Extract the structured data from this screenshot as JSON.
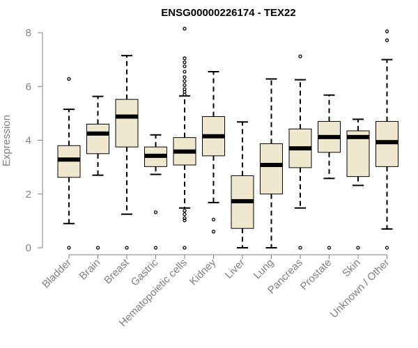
{
  "chart_data": {
    "type": "box",
    "title": "ENSG00000226174 - TEX22",
    "xlabel": "",
    "ylabel": "Expression",
    "ylim": [
      0,
      8
    ],
    "yticks": [
      0,
      2,
      4,
      6,
      8
    ],
    "grid": false,
    "box_fill": "#efe8cf",
    "categories": [
      "Bladder",
      "Brain",
      "Breast",
      "Gastric",
      "Hematopoietic cells",
      "Kidney",
      "Liver",
      "Lung",
      "Pancreas",
      "Prostate",
      "Skin",
      "Unknown / Other"
    ],
    "boxes": [
      {
        "q1": 2.62,
        "median": 3.28,
        "q3": 3.8,
        "whisker_low": 0.9,
        "whisker_high": 5.15,
        "outliers": [
          0,
          6.28
        ]
      },
      {
        "q1": 3.5,
        "median": 4.25,
        "q3": 4.6,
        "whisker_low": 2.7,
        "whisker_high": 5.63,
        "outliers": [
          0
        ]
      },
      {
        "q1": 3.75,
        "median": 4.88,
        "q3": 5.52,
        "whisker_low": 1.25,
        "whisker_high": 7.15,
        "outliers": [
          0
        ]
      },
      {
        "q1": 3.02,
        "median": 3.42,
        "q3": 3.75,
        "whisker_low": 2.73,
        "whisker_high": 4.2,
        "outliers": [
          0,
          1.32
        ]
      },
      {
        "q1": 3.08,
        "median": 3.58,
        "q3": 4.1,
        "whisker_low": 1.48,
        "whisker_high": 5.65,
        "outliers": [
          0,
          1.02,
          1.1,
          1.25,
          1.38,
          5.7,
          5.8,
          5.9,
          6.05,
          6.2,
          6.35,
          6.55,
          6.75,
          6.9,
          7.05,
          8.15
        ]
      },
      {
        "q1": 3.42,
        "median": 4.15,
        "q3": 4.88,
        "whisker_low": 1.68,
        "whisker_high": 6.55,
        "outliers": [
          0.6,
          1.05
        ]
      },
      {
        "q1": 0.72,
        "median": 1.73,
        "q3": 2.68,
        "whisker_low": 0,
        "whisker_high": 4.68,
        "outliers": []
      },
      {
        "q1": 2.0,
        "median": 3.08,
        "q3": 3.87,
        "whisker_low": 0,
        "whisker_high": 6.28,
        "outliers": []
      },
      {
        "q1": 2.98,
        "median": 3.7,
        "q3": 4.42,
        "whisker_low": 1.48,
        "whisker_high": 6.25,
        "outliers": [
          0,
          7.12
        ]
      },
      {
        "q1": 3.55,
        "median": 4.12,
        "q3": 4.7,
        "whisker_low": 2.58,
        "whisker_high": 5.68,
        "outliers": [
          0
        ]
      },
      {
        "q1": 2.65,
        "median": 4.12,
        "q3": 4.35,
        "whisker_low": 2.32,
        "whisker_high": 4.78,
        "outliers": [
          0
        ]
      },
      {
        "q1": 3.02,
        "median": 3.93,
        "q3": 4.7,
        "whisker_low": 0.7,
        "whisker_high": 7.0,
        "outliers": [
          0,
          7.72,
          8.05
        ]
      }
    ]
  }
}
